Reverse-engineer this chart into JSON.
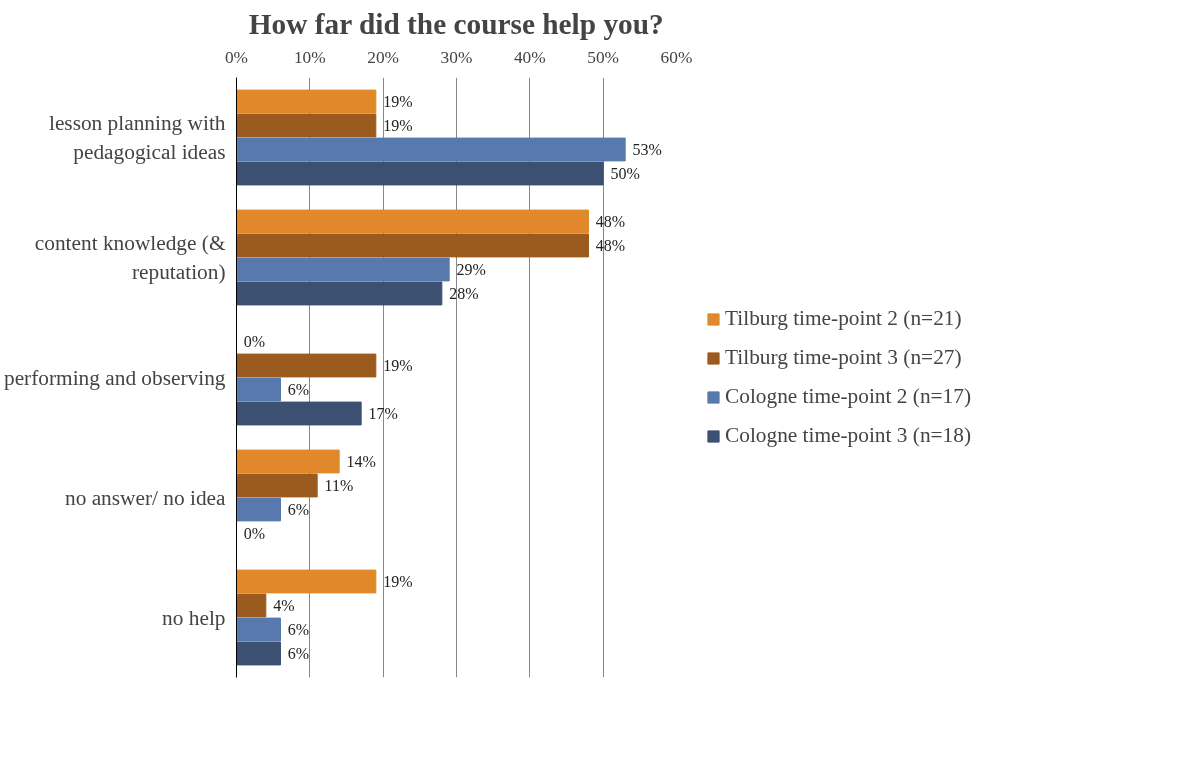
{
  "chart_data": {
    "type": "bar",
    "orientation": "horizontal",
    "title": "How far did the course help you?",
    "categories": [
      "lesson planning with pedagogical ideas",
      "content knowledge (& reputation)",
      "performing and observing",
      "no answer/ no idea",
      "no help"
    ],
    "series": [
      {
        "name": "Tilburg time-point 2 (n=21)",
        "color": "#e0882a",
        "values": [
          19,
          48,
          0,
          14,
          19
        ],
        "value_labels": [
          "19%",
          "48%",
          "0%",
          "14%",
          "19%"
        ]
      },
      {
        "name": "Tilburg time-point 3 (n=27)",
        "color": "#9c5b1e",
        "values": [
          19,
          48,
          19,
          11,
          4
        ],
        "value_labels": [
          "19%",
          "48%",
          "19%",
          "11%",
          "4%"
        ]
      },
      {
        "name": "Cologne time-point 2 (n=17)",
        "color": "#5879ad",
        "values": [
          53,
          29,
          6,
          6,
          6
        ],
        "value_labels": [
          "53%",
          "29%",
          "6%",
          "6%",
          "6%"
        ]
      },
      {
        "name": "Cologne time-point 3 (n=18)",
        "color": "#3c5172",
        "values": [
          50,
          28,
          17,
          0,
          6
        ],
        "value_labels": [
          "50%",
          "28%",
          "17%",
          "0%",
          "6%"
        ]
      }
    ],
    "xlim": [
      0,
      60
    ],
    "xticks": [
      {
        "value": 0,
        "label": "0%"
      },
      {
        "value": 10,
        "label": "10%"
      },
      {
        "value": 20,
        "label": "20%"
      },
      {
        "value": 30,
        "label": "30%"
      },
      {
        "value": 40,
        "label": "40%"
      },
      {
        "value": 50,
        "label": "50%"
      },
      {
        "value": 60,
        "label": "60%"
      }
    ],
    "grid": "x",
    "legend": "right"
  }
}
